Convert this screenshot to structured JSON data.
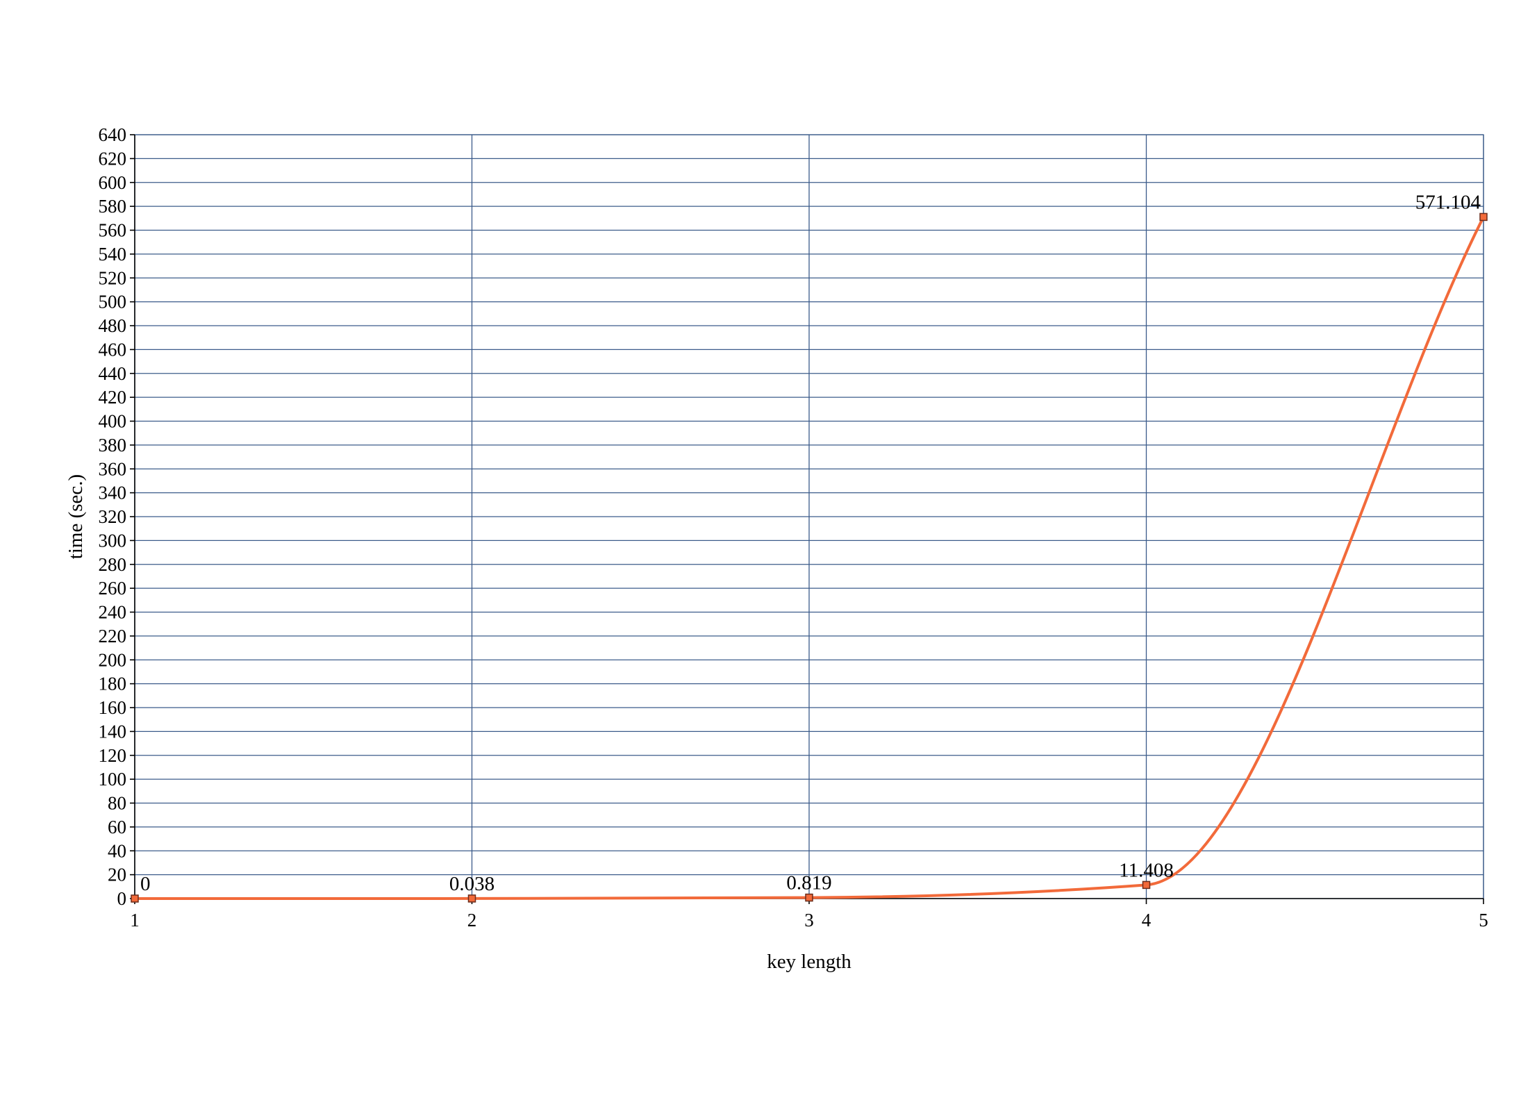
{
  "chart_data": {
    "type": "line",
    "title": "",
    "xlabel": "key length",
    "ylabel": "time (sec.)",
    "xlim": [
      1,
      5
    ],
    "ylim": [
      0,
      640
    ],
    "x_ticks": [
      1,
      2,
      3,
      4,
      5
    ],
    "y_ticks": [
      0,
      20,
      40,
      60,
      80,
      100,
      120,
      140,
      160,
      180,
      200,
      220,
      240,
      260,
      280,
      300,
      320,
      340,
      360,
      380,
      400,
      420,
      440,
      460,
      480,
      500,
      520,
      540,
      560,
      580,
      600,
      620,
      640
    ],
    "grid": true,
    "smoothed": true,
    "series": [
      {
        "color": "#f26a3a",
        "x": [
          1,
          2,
          3,
          4,
          5
        ],
        "y": [
          0,
          0.038,
          0.819,
          11.408,
          571.104
        ],
        "labels": [
          "0",
          "0.038",
          "0.819",
          "11.408",
          "571.104"
        ]
      }
    ]
  }
}
